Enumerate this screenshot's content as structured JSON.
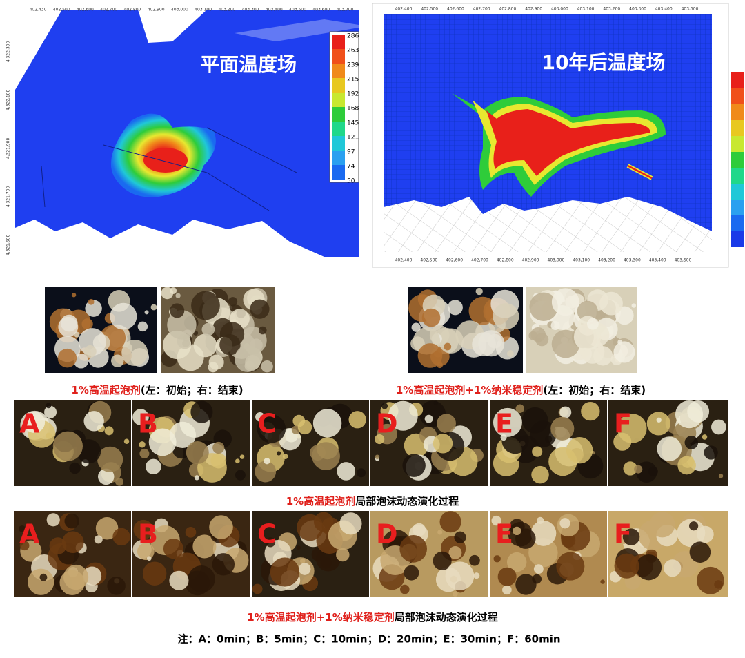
{
  "maps": {
    "left": {
      "title": "平面温度场",
      "x_ticks": [
        "402,430",
        "402,500",
        "402,600",
        "402,700",
        "402,800",
        "402,900",
        "403,000",
        "403,100",
        "403,200",
        "403,300",
        "403,400",
        "403,500",
        "403,600",
        "403,700"
      ],
      "y_ticks": [
        "4,322,300",
        "4,322,100",
        "4,321,900",
        "4,321,700",
        "4,321,500"
      ],
      "colorbar": [
        286,
        263,
        239,
        215,
        192,
        168,
        145,
        121,
        97,
        74,
        50
      ]
    },
    "right": {
      "title": "10年后温度场",
      "x_ticks_top": [
        "402,400",
        "402,500",
        "402,600",
        "402,700",
        "402,800",
        "402,900",
        "403,000",
        "403,100",
        "403,200",
        "403,300",
        "403,400",
        "403,500"
      ],
      "x_ticks_bottom": [
        "402,400",
        "402,500",
        "402,600",
        "402,700",
        "402,800",
        "402,900",
        "403,000",
        "403,100",
        "403,200",
        "403,300",
        "403,400",
        "403,500"
      ]
    }
  },
  "experiments": [
    {
      "highlight": "1%高温起泡剂",
      "caption": "(左：初始；右：结束)"
    },
    {
      "highlight": "1%高温起泡剂+1%纳米稳定剂",
      "caption": "(左：初始；右：结束)"
    }
  ],
  "sequences": [
    {
      "panels": [
        "A",
        "B",
        "C",
        "D",
        "E",
        "F"
      ],
      "highlight": "1%高温起泡剂",
      "caption": "局部泡沫动态演化过程"
    },
    {
      "panels": [
        "A",
        "B",
        "C",
        "D",
        "E",
        "F"
      ],
      "highlight": "1%高温起泡剂+1%纳米稳定剂",
      "caption": "局部泡沫动态演化过程"
    }
  ],
  "note": "注：A：0min；B：5min；C：10min；D：20min；E：30min；F：60min"
}
